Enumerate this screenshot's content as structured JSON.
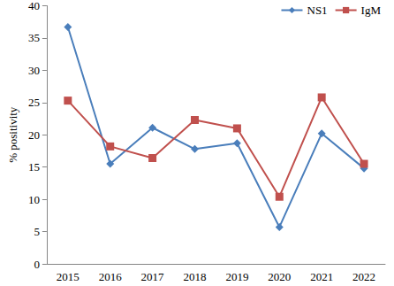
{
  "chart_data": {
    "type": "line",
    "y_label": "% positivity",
    "categories": [
      "2015",
      "2016",
      "2017",
      "2018",
      "2019",
      "2020",
      "2021",
      "2022"
    ],
    "series": [
      {
        "name": "NS1",
        "color": "#4a7ebb",
        "marker": "diamond",
        "values": [
          36.7,
          15.5,
          21.1,
          17.8,
          18.7,
          5.7,
          20.2,
          14.8
        ]
      },
      {
        "name": "IgM",
        "color": "#c0504d",
        "marker": "square",
        "values": [
          25.3,
          18.2,
          16.4,
          22.3,
          21.0,
          10.4,
          25.8,
          15.5
        ]
      }
    ],
    "ylim": [
      0,
      40
    ],
    "yticks": [
      0,
      5,
      10,
      15,
      20,
      25,
      30,
      35,
      40
    ],
    "grid": false,
    "legend": "top-right"
  }
}
